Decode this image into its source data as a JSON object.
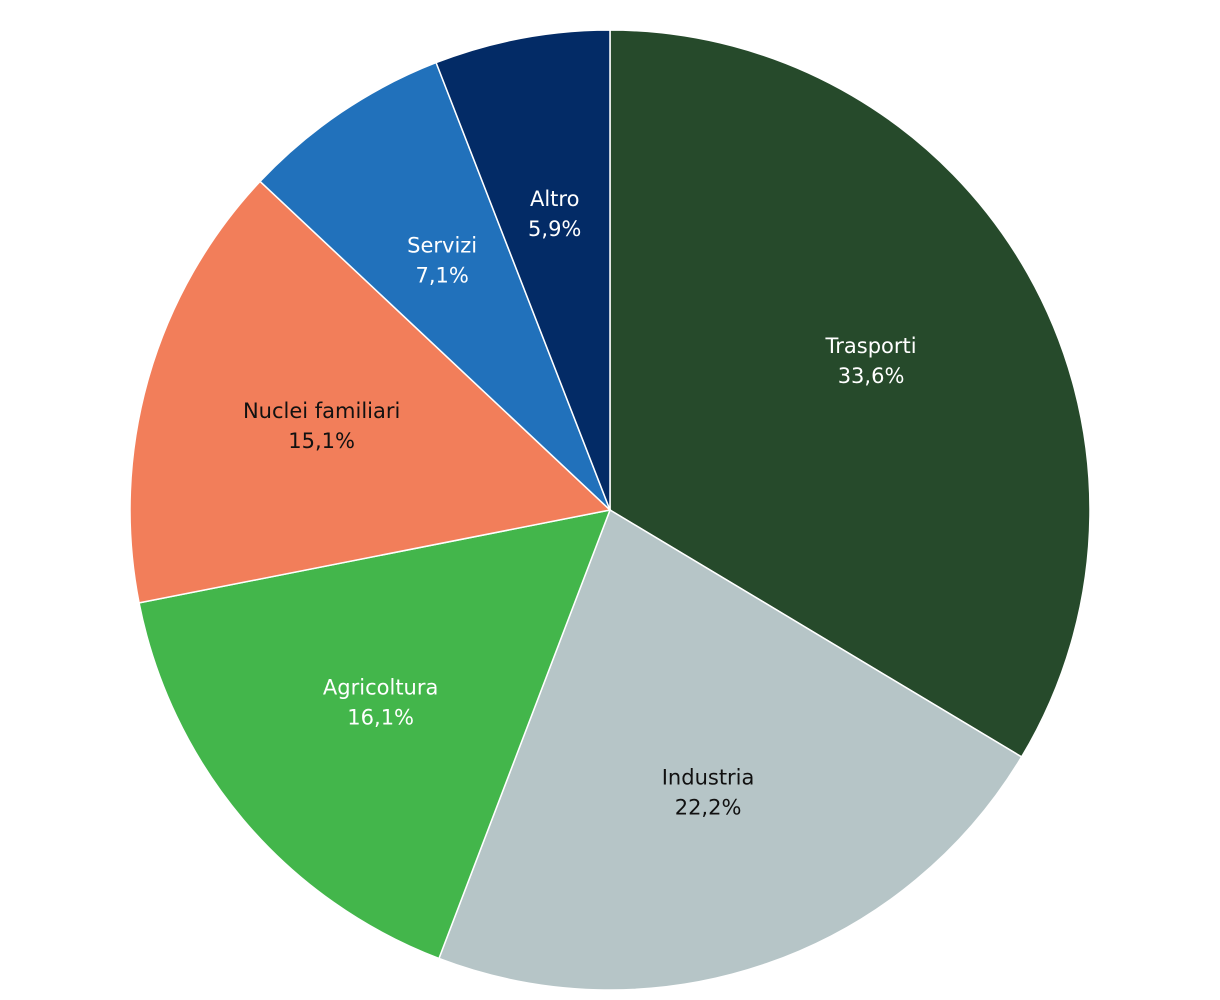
{
  "chart_data": {
    "type": "pie",
    "categories": [
      "Trasporti",
      "Industria",
      "Agricoltura",
      "Nuclei familiari",
      "Servizi",
      "Altro"
    ],
    "values": [
      33.6,
      22.2,
      16.1,
      15.1,
      7.1,
      5.9
    ],
    "value_labels": [
      "33,6%",
      "22,2%",
      "16,1%",
      "15,1%",
      "7,1%",
      "5,9%"
    ],
    "colors": [
      "#264a2b",
      "#b6c5c7",
      "#43b64b",
      "#f27e5a",
      "#2171bb",
      "#032b66"
    ]
  }
}
